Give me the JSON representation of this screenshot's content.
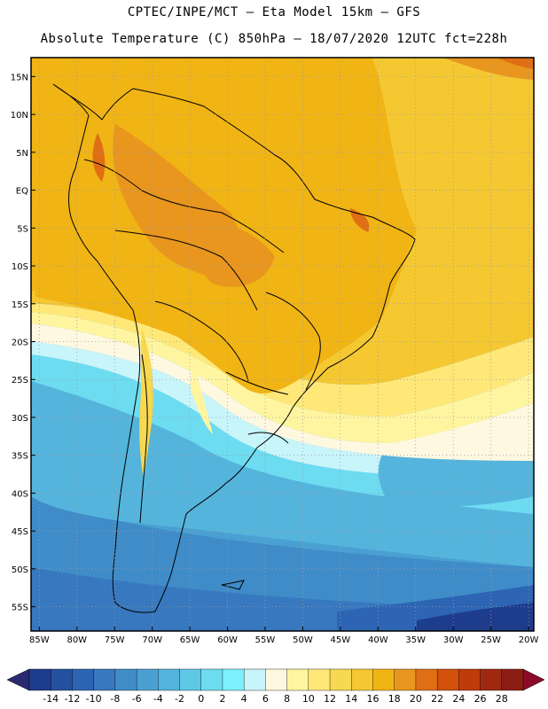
{
  "title_line1": "CPTEC/INPE/MCT —   Eta Model 15km — GFS",
  "title_line2": "Absolute Temperature (C) 850hPa — 18/07/2020 12UTC fct=228h",
  "lat_labels": [
    "15N",
    "10N",
    "5N",
    "EQ",
    "5S",
    "10S",
    "15S",
    "20S",
    "25S",
    "30S",
    "35S",
    "40S",
    "45S",
    "50S",
    "55S"
  ],
  "lat_values": [
    15,
    10,
    5,
    0,
    -5,
    -10,
    -15,
    -20,
    -25,
    -30,
    -35,
    -40,
    -45,
    -50,
    -55
  ],
  "lon_labels": [
    "85W",
    "80W",
    "75W",
    "70W",
    "65W",
    "60W",
    "55W",
    "50W",
    "45W",
    "40W",
    "35W",
    "30W",
    "25W",
    "20W"
  ],
  "lon_values": [
    -85,
    -80,
    -75,
    -70,
    -65,
    -60,
    -55,
    -50,
    -45,
    -40,
    -35,
    -30,
    -25,
    -20
  ],
  "colorbar": {
    "labels": [
      "-14",
      "-12",
      "-10",
      "-8",
      "-6",
      "-4",
      "-2",
      "0",
      "2",
      "4",
      "6",
      "8",
      "10",
      "12",
      "14",
      "16",
      "18",
      "20",
      "22",
      "24",
      "26",
      "28"
    ],
    "colors": [
      "#1e3c8c",
      "#2450a0",
      "#2d64b4",
      "#3778be",
      "#3f8cc8",
      "#4aa0d2",
      "#55b4dc",
      "#5fc8e6",
      "#6ddcf0",
      "#7bf0ff",
      "#c8f5fa",
      "#fff8e0",
      "#fff5a0",
      "#ffe878",
      "#f8d850",
      "#f5c832",
      "#f0b414",
      "#e8961e",
      "#e06e14",
      "#d2500a",
      "#be3c0a",
      "#a02810",
      "#8c1e14"
    ],
    "left_arrow": "#2a2a70",
    "right_arrow": "#8c0a28"
  }
}
